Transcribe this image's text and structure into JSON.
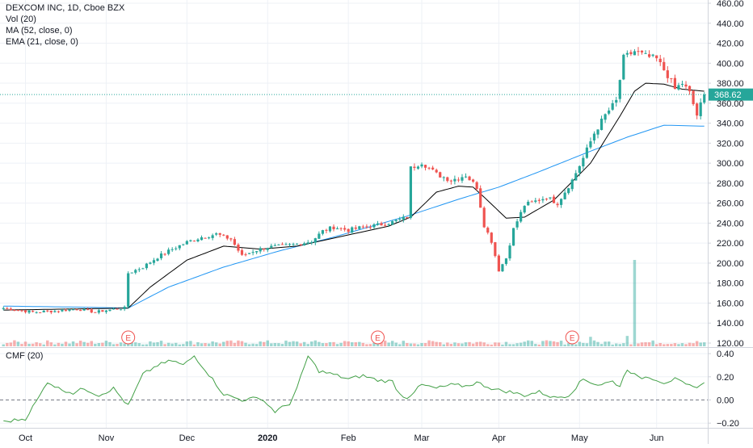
{
  "chart_data": [
    {
      "type": "candlestick",
      "title": "DEXCOM INC, 1D, Cboe BZX",
      "indicators": [
        "Vol (20)",
        "MA (52, close, 0)",
        "EMA (21, close, 0)"
      ],
      "last_price_label": "368.62",
      "last_price": 368.62,
      "ylim": [
        120,
        460
      ],
      "y_ticks": [
        120,
        140,
        160,
        180,
        200,
        220,
        240,
        260,
        280,
        300,
        320,
        340,
        360,
        380,
        400,
        420,
        440,
        460
      ],
      "x_ticks": [
        "Oct",
        "Nov",
        "Dec",
        "2020",
        "Feb",
        "Mar",
        "Apr",
        "May",
        "Jun"
      ],
      "earnings_markers": [
        "E",
        "E",
        "E"
      ],
      "grid": true,
      "colors": {
        "up": "#26a69a",
        "down": "#ef5350",
        "ma": "#2196f3",
        "ema": "#000000",
        "last_price": "#26a69a"
      },
      "close_anchors": [
        [
          0,
          155
        ],
        [
          8,
          151
        ],
        [
          14,
          152
        ],
        [
          20,
          154
        ],
        [
          25,
          151
        ],
        [
          30,
          154
        ],
        [
          33,
          155
        ],
        [
          34,
          190
        ],
        [
          38,
          196
        ],
        [
          42,
          206
        ],
        [
          46,
          214
        ],
        [
          50,
          221
        ],
        [
          54,
          226
        ],
        [
          58,
          229
        ],
        [
          62,
          224
        ],
        [
          65,
          207
        ],
        [
          68,
          212
        ],
        [
          72,
          216
        ],
        [
          76,
          217
        ],
        [
          80,
          219
        ],
        [
          84,
          222
        ],
        [
          87,
          232
        ],
        [
          90,
          236
        ],
        [
          94,
          233
        ],
        [
          98,
          236
        ],
        [
          102,
          238
        ],
        [
          106,
          241
        ],
        [
          110,
          246
        ],
        [
          111,
          295
        ],
        [
          114,
          301
        ],
        [
          118,
          289
        ],
        [
          122,
          283
        ],
        [
          126,
          288
        ],
        [
          129,
          276
        ],
        [
          131,
          238
        ],
        [
          133,
          222
        ],
        [
          135,
          193
        ],
        [
          137,
          205
        ],
        [
          139,
          234
        ],
        [
          142,
          258
        ],
        [
          145,
          262
        ],
        [
          148,
          266
        ],
        [
          151,
          260
        ],
        [
          155,
          283
        ],
        [
          158,
          305
        ],
        [
          161,
          330
        ],
        [
          164,
          348
        ],
        [
          167,
          362
        ],
        [
          169,
          405
        ],
        [
          172,
          412
        ],
        [
          175,
          407
        ],
        [
          178,
          404
        ],
        [
          181,
          388
        ],
        [
          183,
          374
        ],
        [
          185,
          380
        ],
        [
          187,
          370
        ],
        [
          189,
          348
        ],
        [
          191,
          368.62
        ]
      ],
      "ma_anchors": [
        [
          0,
          157
        ],
        [
          20,
          156
        ],
        [
          34,
          155
        ],
        [
          45,
          176
        ],
        [
          60,
          196
        ],
        [
          75,
          212
        ],
        [
          90,
          226
        ],
        [
          110,
          247
        ],
        [
          125,
          265
        ],
        [
          135,
          276
        ],
        [
          145,
          290
        ],
        [
          160,
          312
        ],
        [
          170,
          326
        ],
        [
          180,
          338
        ],
        [
          191,
          337
        ]
      ],
      "ema_anchors": [
        [
          0,
          153
        ],
        [
          34,
          155
        ],
        [
          40,
          176
        ],
        [
          50,
          203
        ],
        [
          60,
          217
        ],
        [
          70,
          214
        ],
        [
          80,
          217
        ],
        [
          90,
          225
        ],
        [
          105,
          237
        ],
        [
          111,
          246
        ],
        [
          118,
          271
        ],
        [
          124,
          277
        ],
        [
          128,
          276
        ],
        [
          131,
          266
        ],
        [
          137,
          245
        ],
        [
          142,
          246
        ],
        [
          150,
          263
        ],
        [
          160,
          300
        ],
        [
          168,
          347
        ],
        [
          172,
          372
        ],
        [
          175,
          380
        ],
        [
          180,
          379
        ],
        [
          185,
          374
        ],
        [
          191,
          372
        ]
      ],
      "volume_spikes": [
        [
          34,
          0.18
        ],
        [
          160,
          0.11
        ],
        [
          170,
          0.12
        ],
        [
          172,
          1.0
        ]
      ]
    },
    {
      "type": "line",
      "title": "CMF (20)",
      "ylim": [
        -0.25,
        0.42
      ],
      "y_ticks": [
        -0.2,
        0.0,
        0.2,
        0.4
      ],
      "y_tick_labels": [
        "−0.20",
        "0.00",
        "0.20",
        "0.40"
      ],
      "zero_line": 0.0,
      "color": "#43a047",
      "anchors": [
        [
          0,
          -0.19
        ],
        [
          6,
          -0.16
        ],
        [
          10,
          0.04
        ],
        [
          12,
          0.16
        ],
        [
          15,
          0.1
        ],
        [
          19,
          0.06
        ],
        [
          22,
          0.1
        ],
        [
          26,
          0.04
        ],
        [
          30,
          0.1
        ],
        [
          34,
          -0.05
        ],
        [
          38,
          0.22
        ],
        [
          42,
          0.3
        ],
        [
          46,
          0.34
        ],
        [
          49,
          0.3
        ],
        [
          52,
          0.38
        ],
        [
          56,
          0.22
        ],
        [
          60,
          0.05
        ],
        [
          65,
          0.0
        ],
        [
          70,
          0.02
        ],
        [
          74,
          -0.1
        ],
        [
          78,
          -0.03
        ],
        [
          80,
          0.1
        ],
        [
          83,
          0.38
        ],
        [
          86,
          0.25
        ],
        [
          90,
          0.22
        ],
        [
          94,
          0.18
        ],
        [
          98,
          0.21
        ],
        [
          102,
          0.17
        ],
        [
          106,
          0.16
        ],
        [
          108,
          0.05
        ],
        [
          110,
          0.02
        ],
        [
          114,
          0.13
        ],
        [
          118,
          0.1
        ],
        [
          122,
          0.13
        ],
        [
          126,
          0.12
        ],
        [
          129,
          0.15
        ],
        [
          134,
          0.09
        ],
        [
          138,
          0.07
        ],
        [
          142,
          0.04
        ],
        [
          146,
          0.07
        ],
        [
          150,
          0.02
        ],
        [
          154,
          0.04
        ],
        [
          158,
          0.18
        ],
        [
          162,
          0.13
        ],
        [
          166,
          0.16
        ],
        [
          168,
          0.12
        ],
        [
          170,
          0.27
        ],
        [
          173,
          0.19
        ],
        [
          176,
          0.2
        ],
        [
          180,
          0.15
        ],
        [
          183,
          0.18
        ],
        [
          186,
          0.13
        ],
        [
          188,
          0.11
        ],
        [
          191,
          0.14
        ]
      ]
    }
  ]
}
